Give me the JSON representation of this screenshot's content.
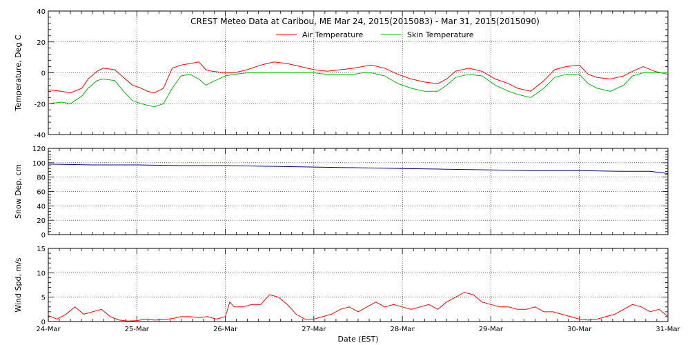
{
  "title": "CREST Meteo Data at Caribou, ME   Mar 24, 2015(2015083) - Mar 31, 2015(2015090)",
  "xlabel": "Date (EST)",
  "x_ticks": [
    "24-Mar",
    "25-Mar",
    "26-Mar",
    "27-Mar",
    "28-Mar",
    "29-Mar",
    "30-Mar",
    "31-Mar"
  ],
  "legend": [
    "Air Temperature",
    "Skin Temperature"
  ],
  "colors": {
    "air": "#ff0000",
    "skin": "#00bb00",
    "snow": "#00008b",
    "wind": "#ff0000",
    "grid": "#000000"
  },
  "chart_data": [
    {
      "type": "line",
      "ylabel": "Temperature, Deg C",
      "ylim": [
        -40,
        40
      ],
      "y_ticks": [
        -40,
        -20,
        0,
        20,
        40
      ],
      "xlim_days": [
        0,
        7
      ],
      "legend_placement": "top-center",
      "grid": true,
      "series": [
        {
          "name": "Air Temperature",
          "x": [
            0,
            0.15,
            0.25,
            0.38,
            0.45,
            0.55,
            0.62,
            0.75,
            0.85,
            0.95,
            1.05,
            1.12,
            1.2,
            1.3,
            1.4,
            1.5,
            1.6,
            1.7,
            1.78,
            1.85,
            2.0,
            2.1,
            2.25,
            2.4,
            2.55,
            2.7,
            2.85,
            3.0,
            3.15,
            3.3,
            3.45,
            3.55,
            3.65,
            3.8,
            3.95,
            4.1,
            4.25,
            4.4,
            4.5,
            4.6,
            4.75,
            4.9,
            5.05,
            5.2,
            5.3,
            5.45,
            5.6,
            5.72,
            5.85,
            6.0,
            6.1,
            6.2,
            6.35,
            6.5,
            6.6,
            6.72,
            6.85,
            7.0
          ],
          "y": [
            -11,
            -12,
            -13,
            -10,
            -4,
            1,
            3,
            2,
            -3,
            -8,
            -10,
            -12,
            -13,
            -10,
            3,
            5,
            6,
            7,
            2,
            1,
            0,
            0,
            2,
            5,
            7,
            6,
            4,
            2,
            1,
            2,
            3,
            4,
            5,
            3,
            -1,
            -4,
            -6,
            -7,
            -4,
            1,
            3,
            1,
            -4,
            -7,
            -10,
            -12,
            -5,
            2,
            4,
            5,
            -1,
            -3,
            -4,
            -2,
            1,
            4,
            1,
            -1
          ]
        },
        {
          "name": "Skin Temperature",
          "x": [
            0,
            0.15,
            0.25,
            0.38,
            0.45,
            0.55,
            0.62,
            0.75,
            0.85,
            0.95,
            1.05,
            1.12,
            1.2,
            1.3,
            1.4,
            1.5,
            1.6,
            1.7,
            1.78,
            1.85,
            2.0,
            2.1,
            2.25,
            2.4,
            2.55,
            2.7,
            2.85,
            3.0,
            3.15,
            3.3,
            3.45,
            3.55,
            3.65,
            3.8,
            3.95,
            4.1,
            4.25,
            4.4,
            4.5,
            4.6,
            4.75,
            4.9,
            5.05,
            5.2,
            5.3,
            5.45,
            5.6,
            5.72,
            5.85,
            6.0,
            6.1,
            6.2,
            6.35,
            6.5,
            6.6,
            6.72,
            6.85,
            7.0
          ],
          "y": [
            -20,
            -19,
            -20,
            -15,
            -10,
            -5,
            -4,
            -5,
            -12,
            -18,
            -20,
            -21,
            -22,
            -20,
            -10,
            -2,
            -1,
            -4,
            -8,
            -6,
            -2,
            -1,
            0,
            0,
            0,
            0,
            0,
            0,
            -1,
            -1,
            -1,
            0,
            0,
            -2,
            -7,
            -10,
            -12,
            -12,
            -8,
            -3,
            -1,
            -2,
            -8,
            -12,
            -14,
            -16,
            -10,
            -3,
            -1,
            -1,
            -7,
            -10,
            -12,
            -8,
            -2,
            0,
            0,
            0
          ]
        }
      ]
    },
    {
      "type": "line",
      "ylabel": "Snow Dep, cm",
      "ylim": [
        0,
        120
      ],
      "y_ticks": [
        0,
        20,
        40,
        60,
        80,
        100,
        120
      ],
      "xlim_days": [
        0,
        7
      ],
      "grid": true,
      "series": [
        {
          "name": "",
          "x": [
            0,
            0.5,
            1,
            1.5,
            2,
            2.5,
            3,
            3.5,
            4,
            4.5,
            5,
            5.5,
            6,
            6.5,
            6.8,
            7.0
          ],
          "y": [
            98,
            97,
            97,
            96,
            96,
            95,
            94,
            93,
            92,
            91,
            90,
            89,
            89,
            88,
            88,
            85
          ]
        }
      ]
    },
    {
      "type": "line",
      "ylabel": "Wind Spd, m/s",
      "ylim": [
        0,
        15
      ],
      "y_ticks": [
        0,
        5,
        10,
        15
      ],
      "xlim_days": [
        0,
        7
      ],
      "grid": true,
      "series": [
        {
          "name": "",
          "x": [
            0,
            0.1,
            0.2,
            0.3,
            0.4,
            0.5,
            0.6,
            0.7,
            0.8,
            0.9,
            1.0,
            1.1,
            1.2,
            1.3,
            1.4,
            1.5,
            1.6,
            1.7,
            1.8,
            1.9,
            2.0,
            2.05,
            2.1,
            2.2,
            2.3,
            2.4,
            2.5,
            2.6,
            2.7,
            2.8,
            2.9,
            3.0,
            3.1,
            3.2,
            3.3,
            3.4,
            3.5,
            3.6,
            3.7,
            3.8,
            3.9,
            4.0,
            4.1,
            4.2,
            4.3,
            4.4,
            4.5,
            4.6,
            4.7,
            4.8,
            4.9,
            5.0,
            5.1,
            5.2,
            5.3,
            5.4,
            5.5,
            5.6,
            5.7,
            5.8,
            5.9,
            6.0,
            6.1,
            6.2,
            6.3,
            6.4,
            6.5,
            6.6,
            6.7,
            6.8,
            6.9,
            7.0
          ],
          "y": [
            1.2,
            0.5,
            1.5,
            3.0,
            1.5,
            2.0,
            2.5,
            1.0,
            0.3,
            0.1,
            0.2,
            0.5,
            0.3,
            0.4,
            0.6,
            1.0,
            1.0,
            0.8,
            1.0,
            0.5,
            1.0,
            4.0,
            3.0,
            3.0,
            3.5,
            3.5,
            5.5,
            5.0,
            3.5,
            1.5,
            0.5,
            0.5,
            1.0,
            1.5,
            2.5,
            3.0,
            2.0,
            3.0,
            4.0,
            3.0,
            3.5,
            3.0,
            2.5,
            3.0,
            3.5,
            2.5,
            4.0,
            5.0,
            6.0,
            5.5,
            4.0,
            3.5,
            3.0,
            3.0,
            2.5,
            2.5,
            3.0,
            2.0,
            2.0,
            1.5,
            1.0,
            0.5,
            0.3,
            0.5,
            1.0,
            1.5,
            2.5,
            3.5,
            3.0,
            2.0,
            2.5,
            1.0
          ]
        }
      ]
    }
  ]
}
